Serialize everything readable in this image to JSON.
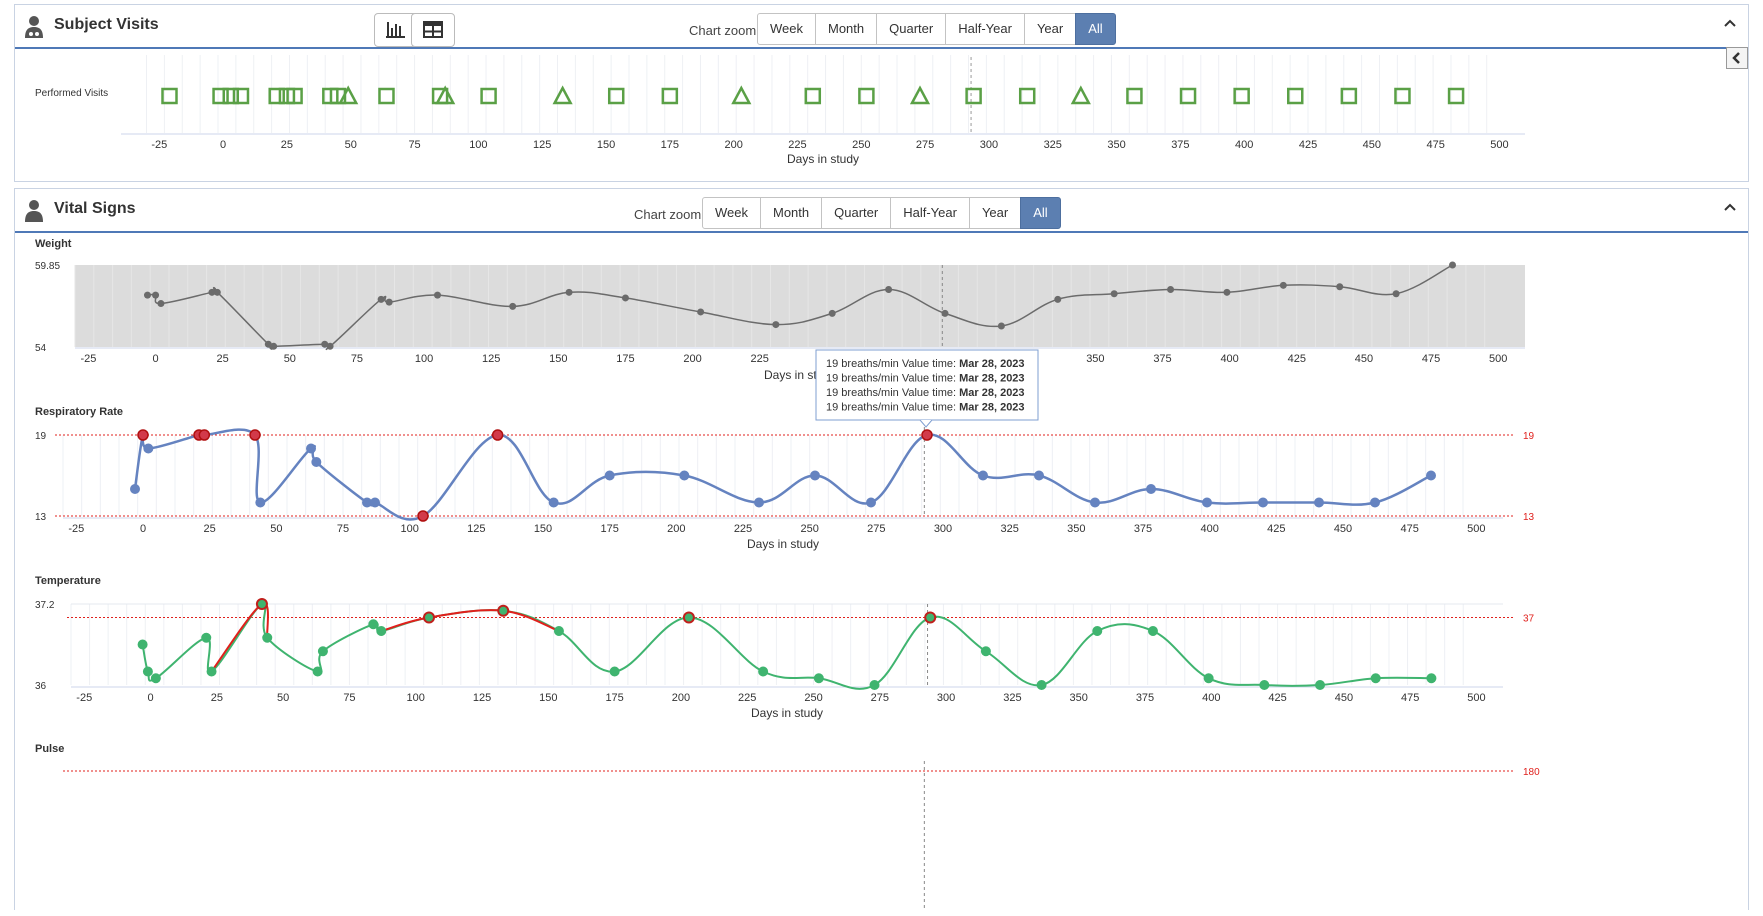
{
  "visits_panel": {
    "title": "Subject Visits",
    "icon": "user-doctor-icon",
    "zoom_label": "Chart zoom:",
    "zoom_options": [
      "Week",
      "Month",
      "Quarter",
      "Half-Year",
      "Year",
      "All"
    ],
    "zoom_selected": "All"
  },
  "vitals_panel": {
    "title": "Vital Signs",
    "icon": "user-icon",
    "zoom_label": "Chart zoom:",
    "zoom_options": [
      "Week",
      "Month",
      "Quarter",
      "Half-Year",
      "Year",
      "All"
    ],
    "zoom_selected": "All"
  },
  "colors": {
    "accent": "#5c7fb1",
    "visit_green": "#5aa046",
    "weight": "#6b6b6b",
    "resp": "#6583c0",
    "temp": "#3fb46f",
    "alert": "#e0201c"
  },
  "chart_data": [
    {
      "type": "scatter",
      "title": "Performed Visits",
      "xlabel": "Days in study",
      "ylabel": "",
      "xlim": [
        -40,
        510
      ],
      "xticks": [
        -25,
        0,
        25,
        50,
        75,
        100,
        125,
        150,
        175,
        200,
        225,
        250,
        275,
        300,
        325,
        350,
        375,
        400,
        425,
        450,
        475,
        500
      ],
      "series": [
        {
          "marker": "square",
          "x": [
            -21,
            -1,
            3,
            7,
            21,
            25,
            28,
            42,
            45,
            64,
            85,
            104,
            154,
            175,
            231,
            252,
            294,
            315,
            357,
            378,
            399,
            420,
            441,
            462,
            483
          ]
        },
        {
          "marker": "triangle",
          "x": [
            49,
            87,
            133,
            203,
            273,
            336
          ]
        }
      ]
    },
    {
      "type": "line",
      "title": "Weight",
      "xlabel": "Days in study",
      "ylabel": "",
      "ylim": [
        54,
        59.85
      ],
      "yticks": [
        "59.85",
        "54"
      ],
      "xticks": [
        -25,
        0,
        25,
        50,
        75,
        100,
        125,
        150,
        175,
        200,
        225,
        250,
        275,
        300,
        325,
        350,
        375,
        400,
        425,
        450,
        475,
        500
      ],
      "x": [
        -3,
        0,
        2,
        21,
        23,
        42,
        44,
        63,
        65,
        84,
        87,
        105,
        133,
        154,
        175,
        203,
        231,
        252,
        273,
        294,
        315,
        336,
        357,
        378,
        399,
        420,
        441,
        462,
        483
      ],
      "y": [
        57.7,
        57.7,
        57.1,
        57.9,
        57.9,
        54.2,
        54.05,
        54.2,
        54.05,
        57.4,
        57.2,
        57.7,
        56.9,
        57.9,
        57.5,
        56.5,
        55.6,
        56.4,
        58.1,
        56.4,
        55.5,
        57.4,
        57.8,
        58.1,
        57.9,
        58.4,
        58.3,
        57.8,
        59.85
      ]
    },
    {
      "type": "line",
      "title": "Respiratory Rate",
      "xlabel": "Days in study",
      "ylabel": "",
      "ylim": [
        13,
        19
      ],
      "yticks": [
        "19",
        "13"
      ],
      "thresholds": [
        "19",
        "13"
      ],
      "xticks": [
        -25,
        0,
        25,
        50,
        75,
        100,
        125,
        150,
        175,
        200,
        225,
        250,
        275,
        300,
        325,
        350,
        375,
        400,
        425,
        450,
        475,
        500
      ],
      "x": [
        -3,
        0,
        2,
        21,
        23,
        42,
        44,
        63,
        65,
        84,
        87,
        105,
        133,
        154,
        175,
        203,
        231,
        252,
        273,
        294,
        315,
        336,
        357,
        378,
        399,
        420,
        441,
        462,
        483
      ],
      "y": [
        15,
        19,
        18,
        19,
        19,
        19,
        14,
        18,
        17,
        14,
        14,
        13,
        19,
        14,
        16,
        16,
        14,
        16,
        14,
        19,
        16,
        16,
        14,
        15,
        14,
        14,
        14,
        14,
        16
      ],
      "alert_points": [
        1,
        3,
        4,
        5,
        11,
        12,
        19
      ]
    },
    {
      "type": "line",
      "title": "Temperature",
      "xlabel": "Days in study",
      "ylabel": "",
      "ylim": [
        36,
        37.2
      ],
      "yticks": [
        "37.2",
        "36"
      ],
      "thresholds": [
        "37"
      ],
      "xticks": [
        -25,
        0,
        25,
        50,
        75,
        100,
        125,
        150,
        175,
        200,
        225,
        250,
        275,
        300,
        325,
        350,
        375,
        400,
        425,
        450,
        475,
        500
      ],
      "x": [
        -3,
        -1,
        2,
        21,
        23,
        42,
        44,
        63,
        65,
        84,
        87,
        105,
        133,
        154,
        175,
        203,
        231,
        252,
        273,
        294,
        315,
        336,
        357,
        378,
        399,
        420,
        441,
        462,
        483
      ],
      "y": [
        36.6,
        36.2,
        36.1,
        36.7,
        36.2,
        37.2,
        36.7,
        36.2,
        36.5,
        36.9,
        36.8,
        37.0,
        37.1,
        36.8,
        36.2,
        37.0,
        36.2,
        36.1,
        36.0,
        37.0,
        36.5,
        36.0,
        36.8,
        36.8,
        36.1,
        36.0,
        36.0,
        36.1,
        36.1
      ],
      "alert_points": [
        5,
        11,
        12,
        15,
        19
      ]
    },
    {
      "type": "line",
      "title": "Pulse",
      "xlabel": "",
      "ylabel": "",
      "thresholds": [
        "180"
      ]
    }
  ],
  "tooltip": {
    "lines": [
      {
        "value": "19 breaths/min",
        "label": "Value time:",
        "time": "Mar 28, 2023"
      },
      {
        "value": "19 breaths/min",
        "label": "Value time:",
        "time": "Mar 28, 2023"
      },
      {
        "value": "19 breaths/min",
        "label": "Value time:",
        "time": "Mar 28, 2023"
      },
      {
        "value": "19 breaths/min",
        "label": "Value time:",
        "time": "Mar 28, 2023"
      }
    ]
  }
}
